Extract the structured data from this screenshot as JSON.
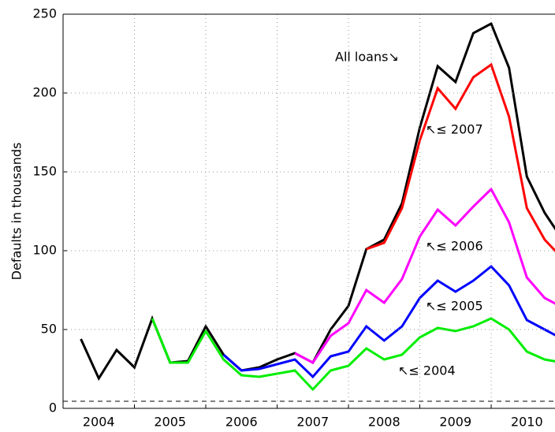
{
  "chart_data": {
    "type": "line",
    "ylabel": "Defaults in thousands",
    "x": [
      2004.25,
      2004.5,
      2004.75,
      2005,
      2005.25,
      2005.5,
      2005.75,
      2006,
      2006.25,
      2006.5,
      2006.75,
      2007,
      2007.25,
      2007.5,
      2007.75,
      2008,
      2008.25,
      2008.5,
      2008.75,
      2009,
      2009.25,
      2009.5,
      2009.75,
      2010,
      2010.25,
      2010.5,
      2010.75,
      2011
    ],
    "series": [
      {
        "color": "#000000",
        "values": [
          44,
          19,
          37,
          26,
          57,
          29,
          30,
          52,
          34,
          24,
          26,
          31,
          35,
          29,
          50,
          65,
          101,
          107,
          130,
          178,
          217,
          207,
          238,
          244,
          216,
          147,
          124,
          107
        ]
      },
      {
        "color": "#ff0000",
        "values": [
          null,
          null,
          null,
          null,
          null,
          null,
          null,
          null,
          null,
          null,
          null,
          null,
          null,
          null,
          null,
          null,
          101,
          105,
          127,
          170,
          203,
          190,
          210,
          218,
          185,
          127,
          107,
          95
        ]
      },
      {
        "color": "#ff00ff",
        "values": [
          null,
          null,
          null,
          null,
          null,
          null,
          null,
          null,
          null,
          null,
          null,
          null,
          35,
          29,
          46,
          54,
          75,
          67,
          82,
          109,
          126,
          116,
          128,
          139,
          118,
          83,
          70,
          64
        ]
      },
      {
        "color": "#0000ff",
        "values": [
          null,
          null,
          null,
          null,
          null,
          null,
          null,
          null,
          34,
          24,
          25,
          28,
          31,
          20,
          33,
          36,
          52,
          43,
          52,
          70,
          81,
          74,
          81,
          90,
          78,
          56,
          50,
          44
        ]
      },
      {
        "color": "#00ee00",
        "values": [
          null,
          null,
          null,
          null,
          57,
          29,
          29,
          49,
          31,
          21,
          20,
          22,
          24,
          12,
          24,
          27,
          38,
          31,
          34,
          45,
          51,
          49,
          52,
          57,
          50,
          36,
          31,
          29
        ]
      }
    ],
    "annotations": [
      "All loans↘",
      "↖≤ 2007",
      "↖≤ 2006",
      "↖≤ 2005",
      "↖≤ 2004"
    ],
    "hline": {
      "value": 4.5,
      "style": "dashed"
    },
    "xlim": [
      2004,
      2010.9
    ],
    "xticks": [
      {
        "value": 2004.5,
        "label": "2004"
      },
      {
        "value": 2005.5,
        "label": "2005"
      },
      {
        "value": 2006.5,
        "label": "2006"
      },
      {
        "value": 2007.5,
        "label": "2007"
      },
      {
        "value": 2008.5,
        "label": "2008"
      },
      {
        "value": 2009.5,
        "label": "2009"
      },
      {
        "value": 2010.5,
        "label": "2010"
      }
    ],
    "xgrid": [
      2005,
      2006,
      2007,
      2008,
      2009,
      2010
    ],
    "ylim": [
      0,
      250
    ],
    "yticks": [
      0,
      50,
      100,
      150,
      200,
      250
    ],
    "grid": true
  }
}
